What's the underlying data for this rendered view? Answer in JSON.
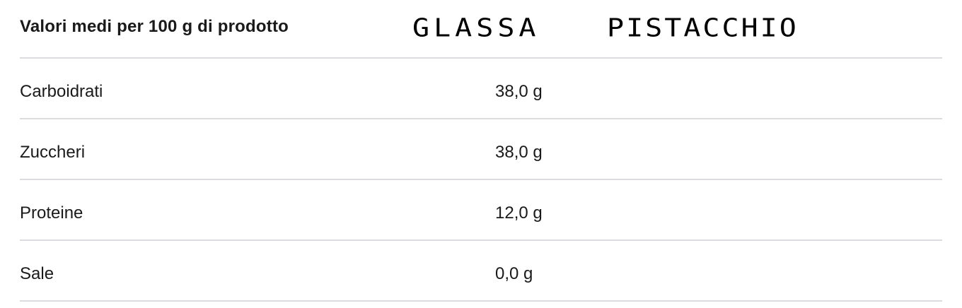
{
  "header": {
    "label": "Valori medi per 100 g di prodotto",
    "handwritten": [
      "GLASSA",
      "PISTACCHIO"
    ]
  },
  "rows": [
    {
      "name": "Carboidrati",
      "value": "38,0 g"
    },
    {
      "name": "Zuccheri",
      "value": "38,0 g"
    },
    {
      "name": "Proteine",
      "value": "12,0 g"
    },
    {
      "name": "Sale",
      "value": "0,0 g"
    }
  ]
}
